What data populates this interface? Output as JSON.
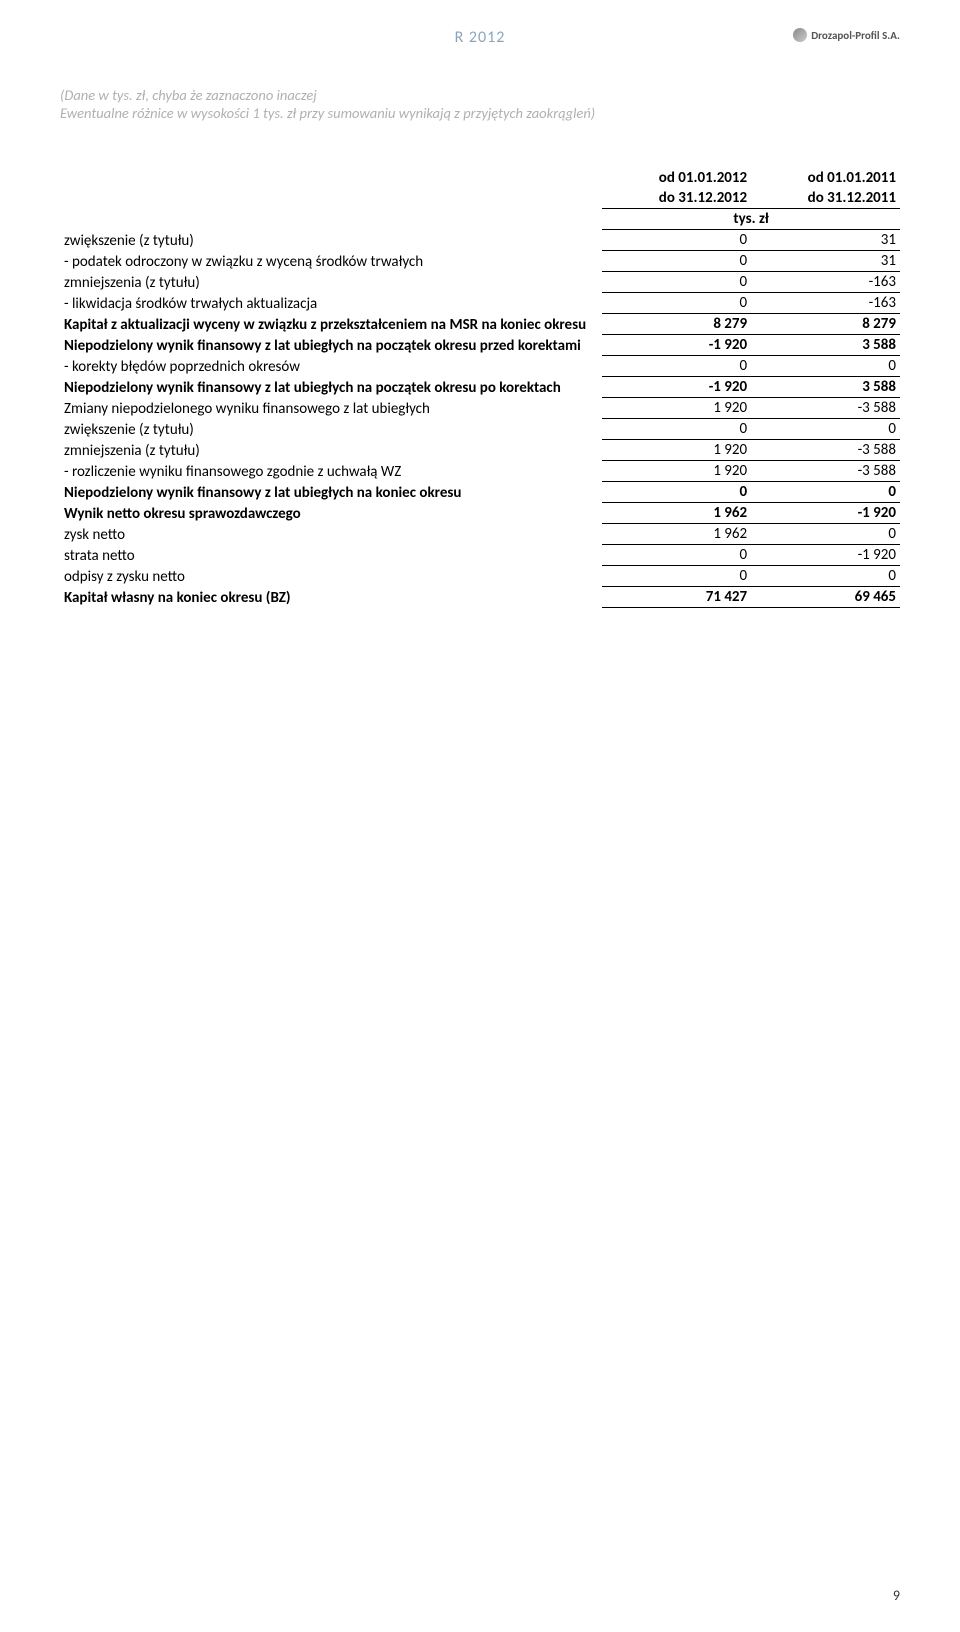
{
  "header": {
    "report_label": "R 2012",
    "italic_line1": "(Dane w tys. zł, chyba że zaznaczono inaczej",
    "italic_line2": "Ewentualne różnice w wysokości 1 tys. zł przy sumowaniu wynikają z przyjętych zaokrągleń)",
    "logo_text": "Drozapol-Profil S.A."
  },
  "table": {
    "col1_l1": "od 01.01.2012",
    "col1_l2": "do 31.12.2012",
    "col2_l1": "od 01.01.2011",
    "col2_l2": "do 31.12.2011",
    "unit": "tys. zł",
    "rows": {
      "r1": {
        "label": "zwiększenie (z tytułu)",
        "c1": "0",
        "c2": "31",
        "bold": false
      },
      "r2": {
        "label": "- podatek odroczony w związku z wyceną środków trwałych",
        "c1": "0",
        "c2": "31",
        "bold": false
      },
      "r3": {
        "label": "zmniejszenia (z tytułu)",
        "c1": "0",
        "c2": "-163",
        "bold": false
      },
      "r4": {
        "label": "- likwidacja środków trwałych aktualizacja",
        "c1": "0",
        "c2": "-163",
        "bold": false
      },
      "r5": {
        "label": "Kapitał z aktualizacji wyceny w związku z przekształceniem na MSR na koniec okresu",
        "c1": "8 279",
        "c2": "8 279",
        "bold": true
      },
      "r6": {
        "label": "Niepodzielony wynik finansowy z lat ubiegłych na początek okresu przed korektami",
        "c1": "-1 920",
        "c2": "3 588",
        "bold": true
      },
      "r7": {
        "label": "- korekty błędów poprzednich okresów",
        "c1": "0",
        "c2": "0",
        "bold": false
      },
      "r8": {
        "label": "Niepodzielony wynik finansowy z lat ubiegłych na początek okresu po korektach",
        "c1": "-1 920",
        "c2": "3 588",
        "bold": true
      },
      "r9": {
        "label": "Zmiany niepodzielonego wyniku finansowego z lat ubiegłych",
        "c1": "1 920",
        "c2": "-3 588",
        "bold": false
      },
      "r10": {
        "label": "zwiększenie (z tytułu)",
        "c1": "0",
        "c2": "0",
        "bold": false
      },
      "r11": {
        "label": "zmniejszenia (z tytułu)",
        "c1": "1 920",
        "c2": "-3 588",
        "bold": false
      },
      "r12": {
        "label": "- rozliczenie wyniku finansowego zgodnie z uchwałą WZ",
        "c1": "1 920",
        "c2": "-3 588",
        "bold": false
      },
      "r13": {
        "label": "Niepodzielony wynik finansowy z lat ubiegłych na koniec okresu",
        "c1": "0",
        "c2": "0",
        "bold": true
      },
      "r14": {
        "label": "Wynik netto okresu sprawozdawczego",
        "c1": "1 962",
        "c2": "-1 920",
        "bold": true
      },
      "r15": {
        "label": "zysk netto",
        "c1": "1 962",
        "c2": "0",
        "bold": false
      },
      "r16": {
        "label": "strata netto",
        "c1": "0",
        "c2": "-1 920",
        "bold": false
      },
      "r17": {
        "label": "odpisy z zysku netto",
        "c1": "0",
        "c2": "0",
        "bold": false
      },
      "r18": {
        "label": "Kapitał własny na koniec okresu (BZ)",
        "c1": "71 427",
        "c2": "69 465",
        "bold": true
      }
    }
  },
  "page_number": "9"
}
